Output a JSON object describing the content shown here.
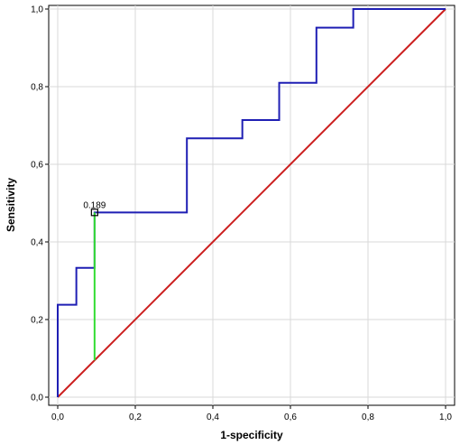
{
  "chart_data": {
    "type": "line",
    "title": "",
    "xlabel": "1-specificity",
    "ylabel": "Sensitivity",
    "xlim": [
      0,
      1
    ],
    "ylim": [
      0,
      1
    ],
    "x_ticks": [
      0,
      0.2,
      0.4,
      0.6,
      0.8,
      1.0
    ],
    "y_ticks": [
      0,
      0.2,
      0.4,
      0.6,
      0.8,
      1.0
    ],
    "x_tick_labels": [
      "0,0",
      "0,2",
      "0,4",
      "0,6",
      "0,8",
      "1,0"
    ],
    "y_tick_labels": [
      "0,0",
      "0,2",
      "0,4",
      "0,6",
      "0,8",
      "1,0"
    ],
    "grid": true,
    "legend": "none",
    "series": [
      {
        "color": "#1f1fb4",
        "x": [
          0.0,
          0.0,
          0.048,
          0.048,
          0.095,
          0.095,
          0.333,
          0.333,
          0.476,
          0.476,
          0.571,
          0.571,
          0.667,
          0.667,
          0.762,
          0.762,
          1.0
        ],
        "y": [
          0.0,
          0.238,
          0.238,
          0.333,
          0.333,
          0.476,
          0.476,
          0.667,
          0.667,
          0.714,
          0.714,
          0.81,
          0.81,
          0.952,
          0.952,
          1.0,
          1.0
        ]
      },
      {
        "color": "#cc1f1f",
        "x": [
          0,
          1
        ],
        "y": [
          0,
          1
        ]
      }
    ],
    "cutoff": {
      "label": "0.189",
      "x": 0.095,
      "y": 0.476,
      "y_reference": 0.095,
      "marker_color": "#000000",
      "line_color": "#33dd33"
    }
  }
}
